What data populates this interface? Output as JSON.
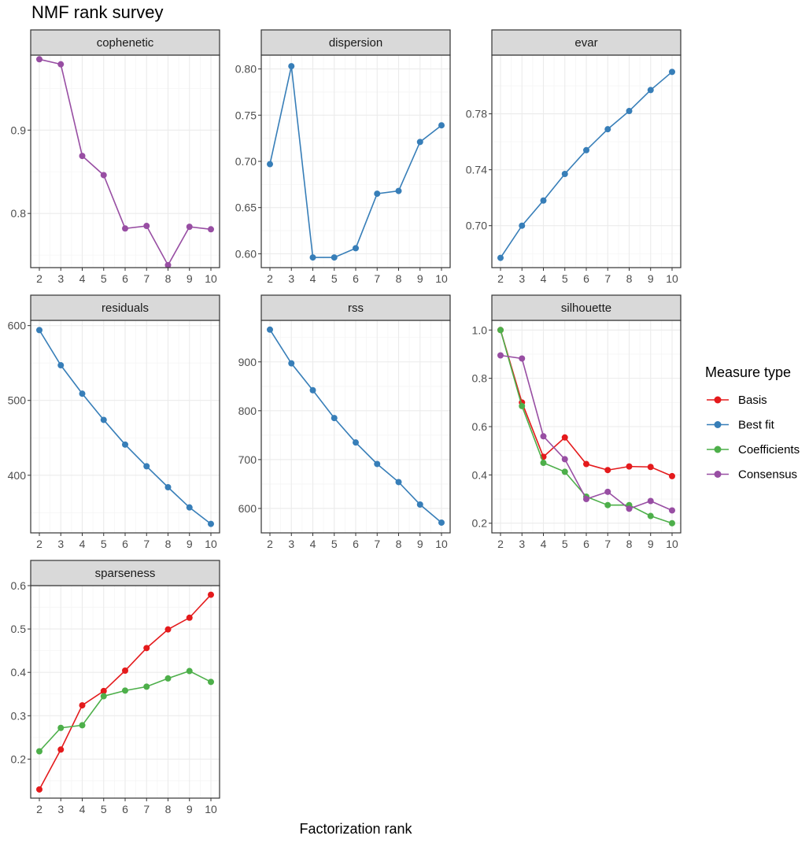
{
  "title": "NMF rank survey",
  "xlabel": "Factorization rank",
  "legend": {
    "title": "Measure type",
    "position": "right",
    "items": [
      {
        "label": "Basis",
        "color": "#E41A1C"
      },
      {
        "label": "Best fit",
        "color": "#377EB8"
      },
      {
        "label": "Coefficients",
        "color": "#4DAF4A"
      },
      {
        "label": "Consensus",
        "color": "#984EA3"
      }
    ]
  },
  "colors": {
    "strip_bg": "#D9D9D9",
    "strip_border": "#333333",
    "grid_major": "#EBEBEB",
    "grid_minor": "#F5F5F5"
  },
  "chart_data": [
    {
      "type": "line",
      "facet": "cophenetic",
      "x": [
        2,
        3,
        4,
        5,
        6,
        7,
        8,
        9,
        10
      ],
      "xticks": [
        "2",
        "3",
        "4",
        "5",
        "6",
        "7",
        "8",
        "9",
        "10"
      ],
      "ylim": [
        0.735,
        0.99
      ],
      "yticks": [
        {
          "v": 0.8,
          "label": "0.8"
        },
        {
          "v": 0.9,
          "label": "0.9"
        }
      ],
      "series": [
        {
          "name": "Consensus",
          "values": [
            0.985,
            0.979,
            0.869,
            0.846,
            0.782,
            0.785,
            0.738,
            0.784,
            0.781
          ]
        }
      ]
    },
    {
      "type": "line",
      "facet": "dispersion",
      "x": [
        2,
        3,
        4,
        5,
        6,
        7,
        8,
        9,
        10
      ],
      "xticks": [
        "2",
        "3",
        "4",
        "5",
        "6",
        "7",
        "8",
        "9",
        "10"
      ],
      "ylim": [
        0.585,
        0.815
      ],
      "yticks": [
        {
          "v": 0.6,
          "label": "0.60"
        },
        {
          "v": 0.65,
          "label": "0.65"
        },
        {
          "v": 0.7,
          "label": "0.70"
        },
        {
          "v": 0.75,
          "label": "0.75"
        },
        {
          "v": 0.8,
          "label": "0.80"
        }
      ],
      "series": [
        {
          "name": "Best fit",
          "values": [
            0.697,
            0.803,
            0.596,
            0.596,
            0.606,
            0.665,
            0.668,
            0.721,
            0.739
          ]
        }
      ]
    },
    {
      "type": "line",
      "facet": "evar",
      "x": [
        2,
        3,
        4,
        5,
        6,
        7,
        8,
        9,
        10
      ],
      "xticks": [
        "2",
        "3",
        "4",
        "5",
        "6",
        "7",
        "8",
        "9",
        "10"
      ],
      "ylim": [
        0.67,
        0.822
      ],
      "yticks": [
        {
          "v": 0.7,
          "label": "0.70"
        },
        {
          "v": 0.74,
          "label": "0.74"
        },
        {
          "v": 0.78,
          "label": "0.78"
        }
      ],
      "series": [
        {
          "name": "Best fit",
          "values": [
            0.677,
            0.7,
            0.718,
            0.737,
            0.754,
            0.769,
            0.782,
            0.797,
            0.81
          ]
        }
      ]
    },
    {
      "type": "line",
      "facet": "residuals",
      "x": [
        2,
        3,
        4,
        5,
        6,
        7,
        8,
        9,
        10
      ],
      "xticks": [
        "2",
        "3",
        "4",
        "5",
        "6",
        "7",
        "8",
        "9",
        "10"
      ],
      "ylim": [
        323,
        607
      ],
      "yticks": [
        {
          "v": 400,
          "label": "400"
        },
        {
          "v": 500,
          "label": "500"
        },
        {
          "v": 600,
          "label": "600"
        }
      ],
      "series": [
        {
          "name": "Best fit",
          "values": [
            594,
            547,
            509,
            474,
            441,
            412,
            384,
            357,
            335
          ]
        }
      ]
    },
    {
      "type": "line",
      "facet": "rss",
      "x": [
        2,
        3,
        4,
        5,
        6,
        7,
        8,
        9,
        10
      ],
      "xticks": [
        "2",
        "3",
        "4",
        "5",
        "6",
        "7",
        "8",
        "9",
        "10"
      ],
      "ylim": [
        550,
        985
      ],
      "yticks": [
        {
          "v": 600,
          "label": "600"
        },
        {
          "v": 700,
          "label": "700"
        },
        {
          "v": 800,
          "label": "800"
        },
        {
          "v": 900,
          "label": "900"
        }
      ],
      "series": [
        {
          "name": "Best fit",
          "values": [
            966,
            897,
            842,
            785,
            735,
            691,
            654,
            608,
            571
          ]
        }
      ]
    },
    {
      "type": "line",
      "facet": "silhouette",
      "x": [
        2,
        3,
        4,
        5,
        6,
        7,
        8,
        9,
        10
      ],
      "xticks": [
        "2",
        "3",
        "4",
        "5",
        "6",
        "7",
        "8",
        "9",
        "10"
      ],
      "ylim": [
        0.16,
        1.04
      ],
      "yticks": [
        {
          "v": 0.2,
          "label": "0.2"
        },
        {
          "v": 0.4,
          "label": "0.4"
        },
        {
          "v": 0.6,
          "label": "0.6"
        },
        {
          "v": 0.8,
          "label": "0.8"
        },
        {
          "v": 1.0,
          "label": "1.0"
        }
      ],
      "series": [
        {
          "name": "Basis",
          "values": [
            1.0,
            0.7,
            0.475,
            0.555,
            0.445,
            0.42,
            0.435,
            0.433,
            0.395
          ]
        },
        {
          "name": "Coefficients",
          "values": [
            1.0,
            0.685,
            0.45,
            0.413,
            0.31,
            0.275,
            0.275,
            0.23,
            0.2
          ]
        },
        {
          "name": "Consensus",
          "values": [
            0.895,
            0.882,
            0.56,
            0.465,
            0.3,
            0.33,
            0.26,
            0.292,
            0.253
          ]
        }
      ]
    },
    {
      "type": "line",
      "facet": "sparseness",
      "x": [
        2,
        3,
        4,
        5,
        6,
        7,
        8,
        9,
        10
      ],
      "xticks": [
        "2",
        "3",
        "4",
        "5",
        "6",
        "7",
        "8",
        "9",
        "10"
      ],
      "ylim": [
        0.11,
        0.6
      ],
      "yticks": [
        {
          "v": 0.2,
          "label": "0.2"
        },
        {
          "v": 0.3,
          "label": "0.3"
        },
        {
          "v": 0.4,
          "label": "0.4"
        },
        {
          "v": 0.5,
          "label": "0.5"
        },
        {
          "v": 0.6,
          "label": "0.6"
        }
      ],
      "series": [
        {
          "name": "Basis",
          "values": [
            0.13,
            0.222,
            0.324,
            0.357,
            0.404,
            0.456,
            0.499,
            0.526,
            0.579
          ]
        },
        {
          "name": "Coefficients",
          "values": [
            0.218,
            0.272,
            0.278,
            0.345,
            0.358,
            0.367,
            0.386,
            0.403,
            0.378
          ]
        }
      ]
    }
  ]
}
